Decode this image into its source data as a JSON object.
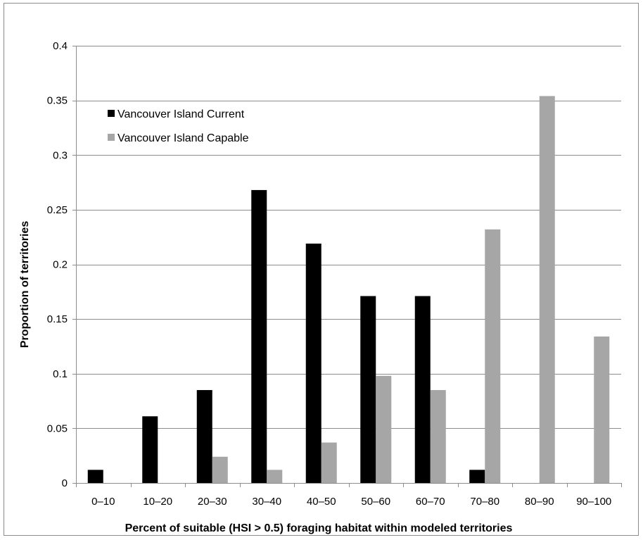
{
  "chart_data": {
    "type": "bar",
    "title": "",
    "xlabel": "Percent of suitable (HSI > 0.5) foraging habitat within modeled territories",
    "ylabel": "Proportion of territories",
    "categories": [
      "0–10",
      "10–20",
      "20–30",
      "30–40",
      "40–50",
      "50–60",
      "60–70",
      "70–80",
      "80–90",
      "90–100"
    ],
    "series": [
      {
        "name": "Vancouver Island Current",
        "color": "#000000",
        "values": [
          0.012,
          0.061,
          0.085,
          0.268,
          0.219,
          0.171,
          0.171,
          0.012,
          0,
          0
        ]
      },
      {
        "name": "Vancouver Island Capable",
        "color": "#a6a6a6",
        "values": [
          0,
          0,
          0.024,
          0.012,
          0.037,
          0.098,
          0.085,
          0.232,
          0.354,
          0.134
        ]
      }
    ],
    "ylim": [
      0,
      0.4
    ],
    "yticks": [
      0,
      0.05,
      0.1,
      0.15,
      0.2,
      0.25,
      0.3,
      0.35,
      0.4
    ],
    "ytick_labels": [
      "0",
      "0.05",
      "0.1",
      "0.15",
      "0.2",
      "0.25",
      "0.3",
      "0.35",
      "0.4"
    ],
    "grid": "horizontal",
    "gridline_color": "#8c8c8c",
    "legend_position": "top-left"
  }
}
